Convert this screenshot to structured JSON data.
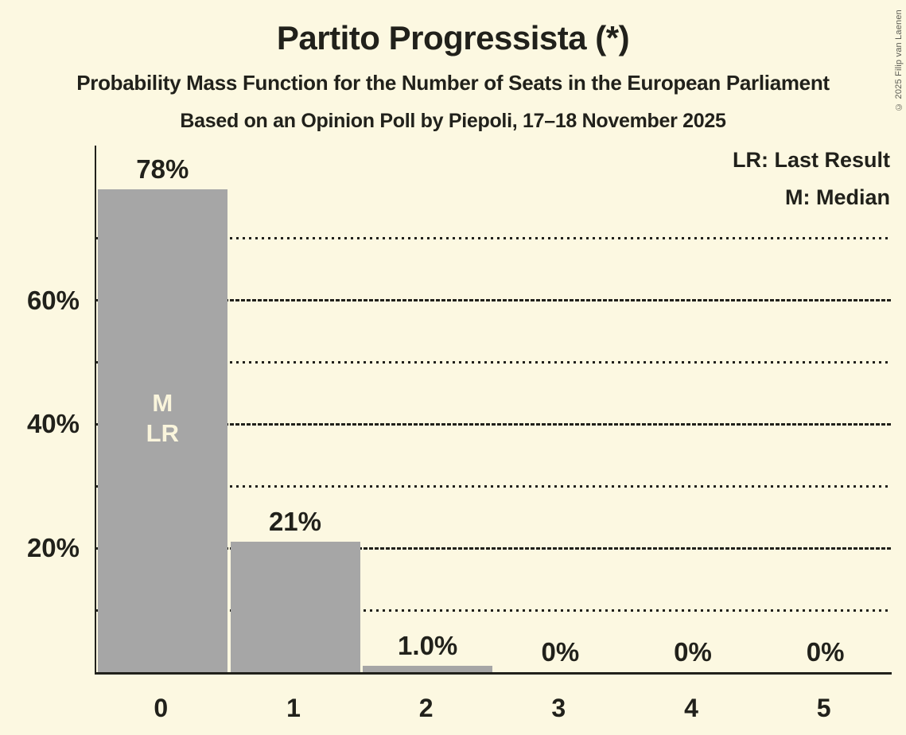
{
  "copyright": "© 2025 Filip van Laenen",
  "legend": {
    "lr": "LR: Last Result",
    "m": "M: Median"
  },
  "chart_data": {
    "type": "bar",
    "title": "Partito Progressista (*)",
    "subtitle": "Probability Mass Function for the Number of Seats in the European Parliament",
    "poll_line": "Based on an Opinion Poll by Piepoli, 17–18 November 2025",
    "categories": [
      "0",
      "1",
      "2",
      "3",
      "4",
      "5"
    ],
    "values": [
      78,
      21,
      1.0,
      0,
      0,
      0
    ],
    "value_labels": [
      "78%",
      "21%",
      "1.0%",
      "0%",
      "0%",
      "0%"
    ],
    "ylim": [
      0,
      85
    ],
    "yticks": [
      {
        "value": 20,
        "label": "20%"
      },
      {
        "value": 40,
        "label": "40%"
      },
      {
        "value": 60,
        "label": "60%"
      }
    ],
    "major_gridlines": [
      20,
      40,
      60
    ],
    "minor_gridlines": [
      10,
      30,
      50,
      70
    ],
    "grid": true,
    "legend_position": "top-right",
    "bar_annotations": [
      {
        "bar_index": 0,
        "lines": [
          "M",
          "LR"
        ]
      }
    ],
    "colors": {
      "background": "#FCF8E1",
      "bar": "#A6A6A6",
      "text": "#21211B",
      "bar_label": "#FAF5DC",
      "axis": "#21211B",
      "copyright": "#5C5C54"
    }
  }
}
